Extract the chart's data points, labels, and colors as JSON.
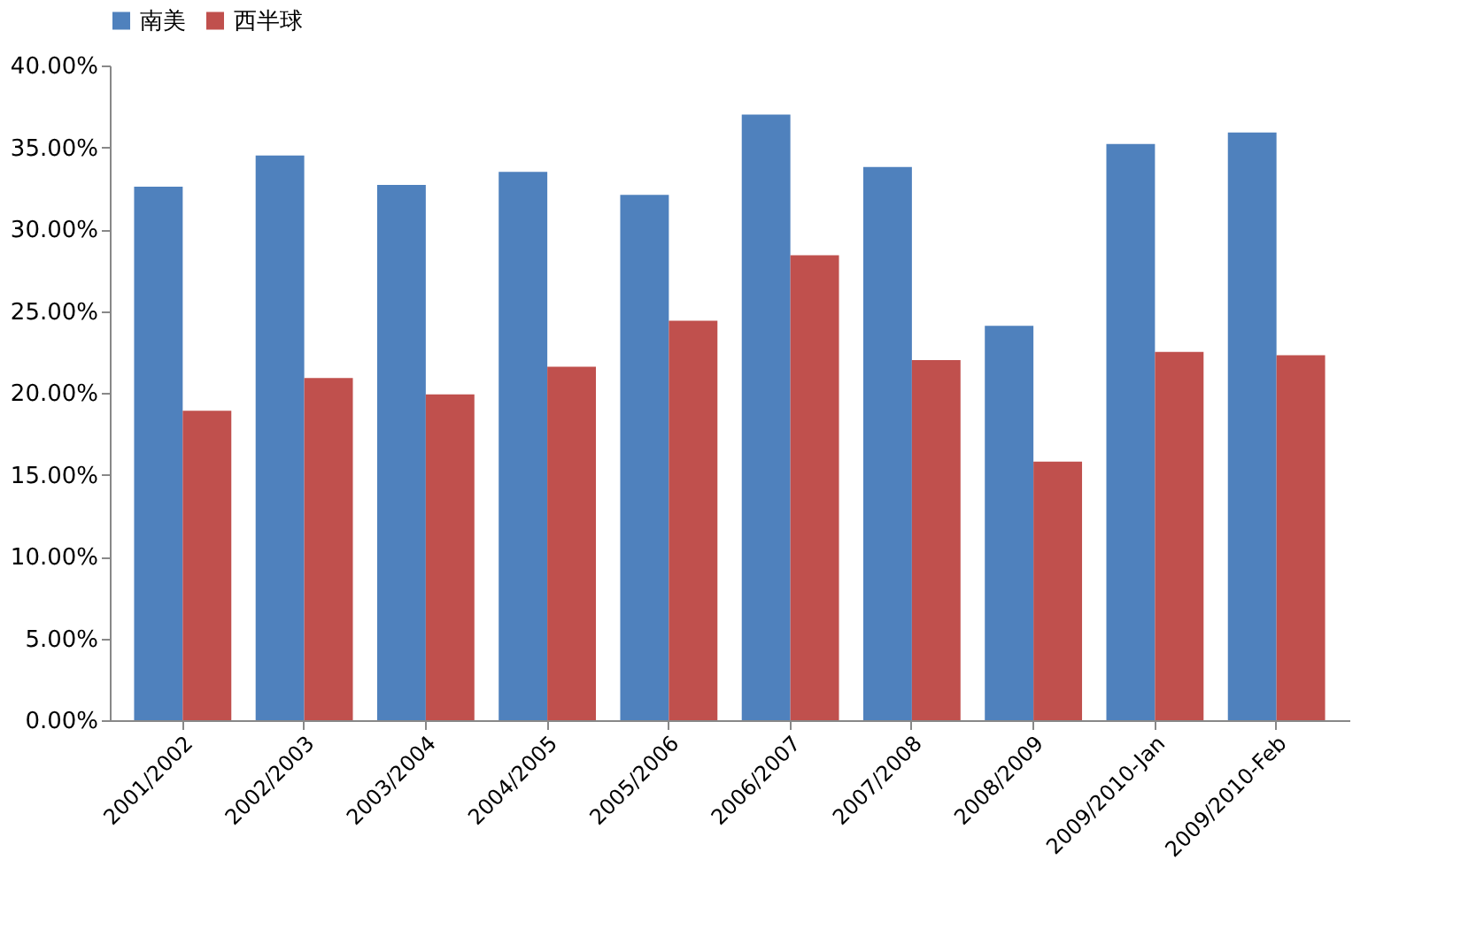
{
  "chart_data": {
    "type": "bar",
    "categories": [
      "2001/2002",
      "2002/2003",
      "2003/2004",
      "2004/2005",
      "2005/2006",
      "2006/2007",
      "2007/2008",
      "2008/2009",
      "2009/2010-Jan",
      "2009/2010-Feb"
    ],
    "series": [
      {
        "name": "南美",
        "color": "#4f81bd",
        "values": [
          32.6,
          34.5,
          32.7,
          33.5,
          32.1,
          37.0,
          33.8,
          24.1,
          35.2,
          35.9
        ]
      },
      {
        "name": "西半球",
        "color": "#c0504d",
        "values": [
          18.9,
          20.9,
          19.9,
          21.6,
          24.4,
          28.4,
          22.0,
          15.8,
          22.5,
          22.3
        ]
      }
    ],
    "ylim": [
      0,
      40
    ],
    "yticks": [
      {
        "value": 0,
        "label": "0.00%"
      },
      {
        "value": 5,
        "label": "5.00%"
      },
      {
        "value": 10,
        "label": "10.00%"
      },
      {
        "value": 15,
        "label": "15.00%"
      },
      {
        "value": 20,
        "label": "20.00%"
      },
      {
        "value": 25,
        "label": "25.00%"
      },
      {
        "value": 30,
        "label": "30.00%"
      },
      {
        "value": 35,
        "label": "35.00%"
      },
      {
        "value": 40,
        "label": "40.00%"
      }
    ],
    "grid": false,
    "legend": "top"
  }
}
